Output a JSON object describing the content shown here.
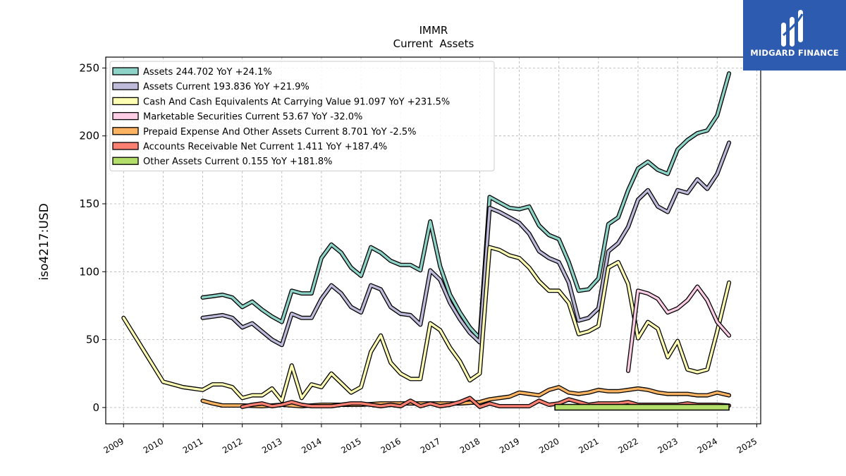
{
  "brand": {
    "name": "MIDGARD FINANCE",
    "logo_icon": "midgard-logo-icon",
    "background": "#2d5bb0"
  },
  "chart_data": {
    "type": "line",
    "title": "IMMR",
    "subtitle": "Current  Assets",
    "ylabel": "iso4217:USD",
    "xlabel": "",
    "xlim": [
      2008.55,
      2025.1
    ],
    "ylim": [
      -12,
      258
    ],
    "x_ticks": [
      2009,
      2010,
      2011,
      2012,
      2013,
      2014,
      2015,
      2016,
      2017,
      2018,
      2019,
      2020,
      2021,
      2022,
      2023,
      2024,
      2025
    ],
    "x_tick_labels": [
      "2009",
      "2010",
      "2011",
      "2012",
      "2013",
      "2014",
      "2015",
      "2016",
      "2017",
      "2018",
      "2019",
      "2020",
      "2021",
      "2022",
      "2023",
      "2024",
      "2025"
    ],
    "y_ticks": [
      0,
      50,
      100,
      150,
      200,
      250
    ],
    "y_tick_labels": [
      "0",
      "50",
      "100",
      "150",
      "200",
      "250"
    ],
    "grid": true,
    "legend_placement": "top-left",
    "series": [
      {
        "name": "Assets",
        "legend": "Assets  244.702 YoY +24.1%",
        "color": "#8dd3c7",
        "points": [
          [
            2011.0,
            81
          ],
          [
            2011.25,
            82
          ],
          [
            2011.5,
            83
          ],
          [
            2011.75,
            81
          ],
          [
            2012.0,
            74
          ],
          [
            2012.25,
            78
          ],
          [
            2012.5,
            72
          ],
          [
            2012.75,
            67
          ],
          [
            2013.0,
            63
          ],
          [
            2013.25,
            86
          ],
          [
            2013.5,
            84
          ],
          [
            2013.75,
            84
          ],
          [
            2014.0,
            110
          ],
          [
            2014.25,
            120
          ],
          [
            2014.5,
            114
          ],
          [
            2014.75,
            103
          ],
          [
            2015.0,
            97
          ],
          [
            2015.25,
            118
          ],
          [
            2015.5,
            114
          ],
          [
            2015.75,
            108
          ],
          [
            2016.0,
            105
          ],
          [
            2016.25,
            105
          ],
          [
            2016.5,
            101
          ],
          [
            2016.75,
            137
          ],
          [
            2017.0,
            104
          ],
          [
            2017.25,
            83
          ],
          [
            2017.5,
            70
          ],
          [
            2017.75,
            59
          ],
          [
            2018.0,
            51
          ],
          [
            2018.25,
            155
          ],
          [
            2018.5,
            151
          ],
          [
            2018.75,
            147
          ],
          [
            2019.0,
            146
          ],
          [
            2019.25,
            148
          ],
          [
            2019.5,
            134
          ],
          [
            2019.75,
            127
          ],
          [
            2020.0,
            124
          ],
          [
            2020.25,
            107
          ],
          [
            2020.5,
            86
          ],
          [
            2020.75,
            87
          ],
          [
            2021.0,
            95
          ],
          [
            2021.25,
            135
          ],
          [
            2021.5,
            140
          ],
          [
            2021.75,
            160
          ],
          [
            2022.0,
            176
          ],
          [
            2022.25,
            181
          ],
          [
            2022.5,
            175
          ],
          [
            2022.75,
            172
          ],
          [
            2023.0,
            190
          ],
          [
            2023.25,
            197
          ],
          [
            2023.5,
            202
          ],
          [
            2023.75,
            204
          ],
          [
            2024.0,
            215
          ],
          [
            2024.3,
            246
          ]
        ]
      },
      {
        "name": "Assets Current",
        "legend": "Assets Current  193.836 YoY +21.9%",
        "color": "#bebada",
        "points": [
          [
            2011.0,
            66
          ],
          [
            2011.25,
            67
          ],
          [
            2011.5,
            68
          ],
          [
            2011.75,
            66
          ],
          [
            2012.0,
            59
          ],
          [
            2012.25,
            62
          ],
          [
            2012.5,
            56
          ],
          [
            2012.75,
            50
          ],
          [
            2013.0,
            46
          ],
          [
            2013.25,
            69
          ],
          [
            2013.5,
            66
          ],
          [
            2013.75,
            66
          ],
          [
            2014.0,
            80
          ],
          [
            2014.25,
            90
          ],
          [
            2014.5,
            84
          ],
          [
            2014.75,
            74
          ],
          [
            2015.0,
            70
          ],
          [
            2015.25,
            90
          ],
          [
            2015.5,
            87
          ],
          [
            2015.75,
            74
          ],
          [
            2016.0,
            69
          ],
          [
            2016.25,
            68
          ],
          [
            2016.5,
            61
          ],
          [
            2016.75,
            101
          ],
          [
            2017.0,
            94
          ],
          [
            2017.25,
            77
          ],
          [
            2017.5,
            65
          ],
          [
            2017.75,
            55
          ],
          [
            2018.0,
            48
          ],
          [
            2018.25,
            147
          ],
          [
            2018.5,
            144
          ],
          [
            2018.75,
            140
          ],
          [
            2019.0,
            136
          ],
          [
            2019.25,
            128
          ],
          [
            2019.5,
            115
          ],
          [
            2019.75,
            110
          ],
          [
            2020.0,
            107
          ],
          [
            2020.25,
            92
          ],
          [
            2020.5,
            64
          ],
          [
            2020.75,
            66
          ],
          [
            2021.0,
            73
          ],
          [
            2021.25,
            115
          ],
          [
            2021.5,
            121
          ],
          [
            2021.75,
            133
          ],
          [
            2022.0,
            153
          ],
          [
            2022.25,
            160
          ],
          [
            2022.5,
            148
          ],
          [
            2022.75,
            144
          ],
          [
            2023.0,
            160
          ],
          [
            2023.25,
            158
          ],
          [
            2023.5,
            168
          ],
          [
            2023.75,
            161
          ],
          [
            2024.0,
            172
          ],
          [
            2024.3,
            195
          ]
        ]
      },
      {
        "name": "Cash And Cash Equivalents At Carrying Value",
        "legend": "Cash And Cash Equivalents At Carrying Value  91.097 YoY +231.5%",
        "color": "#ffffb3",
        "points": [
          [
            2009.0,
            66
          ],
          [
            2010.0,
            19
          ],
          [
            2010.5,
            15
          ],
          [
            2011.0,
            13
          ],
          [
            2011.25,
            17
          ],
          [
            2011.5,
            17
          ],
          [
            2011.75,
            15
          ],
          [
            2012.0,
            7
          ],
          [
            2012.25,
            9
          ],
          [
            2012.5,
            9
          ],
          [
            2012.75,
            14
          ],
          [
            2013.0,
            5
          ],
          [
            2013.25,
            31
          ],
          [
            2013.5,
            7
          ],
          [
            2013.75,
            17
          ],
          [
            2014.0,
            15
          ],
          [
            2014.25,
            25
          ],
          [
            2014.5,
            18
          ],
          [
            2014.75,
            11
          ],
          [
            2015.0,
            15
          ],
          [
            2015.25,
            41
          ],
          [
            2015.5,
            53
          ],
          [
            2015.75,
            33
          ],
          [
            2016.0,
            25
          ],
          [
            2016.25,
            21
          ],
          [
            2016.5,
            21
          ],
          [
            2016.75,
            62
          ],
          [
            2017.0,
            57
          ],
          [
            2017.25,
            44
          ],
          [
            2017.5,
            34
          ],
          [
            2017.75,
            20
          ],
          [
            2018.0,
            25
          ],
          [
            2018.25,
            118
          ],
          [
            2018.5,
            116
          ],
          [
            2018.75,
            112
          ],
          [
            2019.0,
            110
          ],
          [
            2019.25,
            103
          ],
          [
            2019.5,
            93
          ],
          [
            2019.75,
            86
          ],
          [
            2020.0,
            86
          ],
          [
            2020.25,
            77
          ],
          [
            2020.5,
            54
          ],
          [
            2020.75,
            56
          ],
          [
            2021.0,
            60
          ],
          [
            2021.25,
            103
          ],
          [
            2021.5,
            107
          ],
          [
            2021.75,
            91
          ],
          [
            2022.0,
            51
          ],
          [
            2022.25,
            63
          ],
          [
            2022.5,
            58
          ],
          [
            2022.75,
            37
          ],
          [
            2023.0,
            49
          ],
          [
            2023.25,
            28
          ],
          [
            2023.5,
            26
          ],
          [
            2023.75,
            28
          ],
          [
            2024.0,
            56
          ],
          [
            2024.3,
            92
          ]
        ]
      },
      {
        "name": "Marketable Securities Current",
        "legend": "Marketable Securities Current  53.67 YoY -32.0%",
        "color": "#fccde5",
        "points": [
          [
            2021.75,
            27
          ],
          [
            2022.0,
            86
          ],
          [
            2022.25,
            84
          ],
          [
            2022.5,
            80
          ],
          [
            2022.75,
            70
          ],
          [
            2023.0,
            73
          ],
          [
            2023.25,
            79
          ],
          [
            2023.5,
            89
          ],
          [
            2023.75,
            79
          ],
          [
            2024.0,
            63
          ],
          [
            2024.3,
            53
          ]
        ]
      },
      {
        "name": "Prepaid Expense And Other Assets Current",
        "legend": "Prepaid Expense And Other Assets Current  8.701 YoY -2.5%",
        "color": "#fdb462",
        "points": [
          [
            2011.0,
            5
          ],
          [
            2011.25,
            3
          ],
          [
            2011.5,
            1.5
          ],
          [
            2011.75,
            1.5
          ],
          [
            2012.0,
            1.5
          ],
          [
            2012.5,
            1
          ],
          [
            2013.0,
            2
          ],
          [
            2013.5,
            1
          ],
          [
            2014.0,
            2
          ],
          [
            2014.5,
            2
          ],
          [
            2015.0,
            2
          ],
          [
            2015.5,
            3
          ],
          [
            2016.0,
            3
          ],
          [
            2016.5,
            3
          ],
          [
            2017.0,
            3
          ],
          [
            2017.5,
            3
          ],
          [
            2018.0,
            4
          ],
          [
            2018.25,
            6
          ],
          [
            2018.5,
            7
          ],
          [
            2018.75,
            8
          ],
          [
            2019.0,
            11
          ],
          [
            2019.25,
            10
          ],
          [
            2019.5,
            9
          ],
          [
            2019.75,
            13
          ],
          [
            2020.0,
            15
          ],
          [
            2020.25,
            11
          ],
          [
            2020.5,
            10
          ],
          [
            2020.75,
            11
          ],
          [
            2021.0,
            13
          ],
          [
            2021.25,
            12
          ],
          [
            2021.5,
            12
          ],
          [
            2021.75,
            13
          ],
          [
            2022.0,
            14
          ],
          [
            2022.25,
            13
          ],
          [
            2022.5,
            11
          ],
          [
            2022.75,
            10
          ],
          [
            2023.0,
            10
          ],
          [
            2023.25,
            10
          ],
          [
            2023.5,
            9
          ],
          [
            2023.75,
            9
          ],
          [
            2024.0,
            11
          ],
          [
            2024.3,
            9
          ]
        ]
      },
      {
        "name": "Accounts Receivable Net Current",
        "legend": "Accounts Receivable Net Current  1.411 YoY +187.4%",
        "color": "#fb8072",
        "points": [
          [
            2012.0,
            0.5
          ],
          [
            2012.25,
            2
          ],
          [
            2012.5,
            3
          ],
          [
            2012.75,
            1
          ],
          [
            2013.0,
            2
          ],
          [
            2013.25,
            4
          ],
          [
            2013.5,
            2
          ],
          [
            2013.75,
            1
          ],
          [
            2014.0,
            1
          ],
          [
            2014.25,
            1
          ],
          [
            2014.5,
            2
          ],
          [
            2014.75,
            3
          ],
          [
            2015.0,
            3
          ],
          [
            2015.25,
            2
          ],
          [
            2015.5,
            1
          ],
          [
            2015.75,
            2
          ],
          [
            2016.0,
            1
          ],
          [
            2016.25,
            5
          ],
          [
            2016.5,
            1
          ],
          [
            2016.75,
            3
          ],
          [
            2017.0,
            1
          ],
          [
            2017.25,
            2
          ],
          [
            2017.5,
            4
          ],
          [
            2017.75,
            7
          ],
          [
            2018.0,
            0.5
          ],
          [
            2018.25,
            3
          ],
          [
            2018.5,
            1
          ],
          [
            2018.75,
            1
          ],
          [
            2019.0,
            1
          ],
          [
            2019.25,
            1
          ],
          [
            2019.5,
            5
          ],
          [
            2019.75,
            2
          ],
          [
            2020.0,
            3
          ],
          [
            2020.25,
            6
          ],
          [
            2020.5,
            4
          ],
          [
            2020.75,
            2
          ],
          [
            2021.0,
            3
          ],
          [
            2021.25,
            3
          ],
          [
            2021.5,
            3
          ],
          [
            2021.75,
            4
          ],
          [
            2022.0,
            2
          ],
          [
            2022.25,
            2
          ],
          [
            2022.5,
            2
          ],
          [
            2022.75,
            2
          ],
          [
            2023.0,
            2
          ],
          [
            2023.25,
            3
          ],
          [
            2023.5,
            2
          ],
          [
            2023.75,
            2
          ],
          [
            2024.0,
            2
          ],
          [
            2024.3,
            1.4
          ]
        ]
      },
      {
        "name": "Other Assets Current",
        "legend": "Other Assets Current  0.155 YoY +181.8%",
        "color": "#b3de69",
        "points": [
          [
            2019.9,
            0.2
          ],
          [
            2020.5,
            0.2
          ],
          [
            2021.0,
            0.2
          ],
          [
            2021.5,
            0.2
          ],
          [
            2022.0,
            0.2
          ],
          [
            2022.5,
            0.2
          ],
          [
            2023.0,
            0.2
          ],
          [
            2023.5,
            0.2
          ],
          [
            2024.0,
            0.2
          ],
          [
            2024.3,
            0.155
          ]
        ],
        "band": true
      }
    ]
  }
}
